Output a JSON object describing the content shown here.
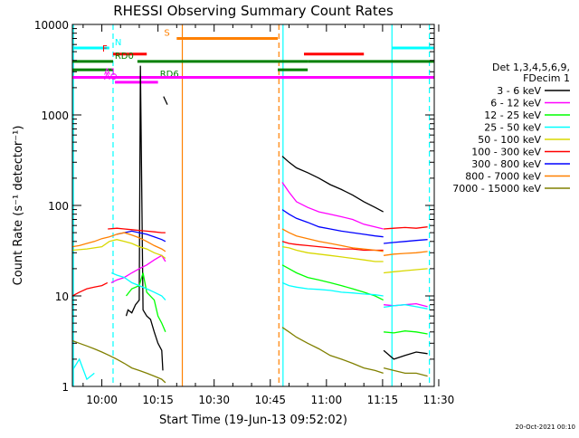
{
  "chart_data": {
    "type": "line",
    "title": "RHESSI Observing Summary Count Rates",
    "xlabel": "Start Time (19-Jun-13 09:52:02)",
    "ylabel": "Count Rate (s⁻¹ detector⁻¹)",
    "x_ticks": [
      "10:00",
      "10:15",
      "10:30",
      "10:45",
      "11:00",
      "11:15",
      "11:30"
    ],
    "x_tick_minutes": [
      0,
      15,
      30,
      45,
      60,
      75,
      90
    ],
    "x_range_minutes": [
      -7.87,
      88.8
    ],
    "y_scale": "log",
    "y_range": [
      1,
      10000
    ],
    "y_ticks": [
      "1",
      "10",
      "100",
      "1000",
      "10000"
    ],
    "y_tick_values": [
      1,
      10,
      100,
      1000,
      10000
    ],
    "grid": false,
    "legend_position": "right",
    "legend_header": [
      "Det 1,3,4,5,6,9,",
      "FDecim 1"
    ],
    "timestamp": "20-Oct-2021 00:10",
    "series": [
      {
        "name": "3 - 6 keV",
        "color": "#000000",
        "segments": [
          {
            "x": [
              6.5,
              7,
              8,
              9,
              10,
              10.3,
              11,
              12,
              13,
              14,
              15,
              16,
              16.3
            ],
            "y": [
              6,
              7,
              6.5,
              8,
              9,
              3500,
              7,
              6,
              5.5,
              4,
              3,
              2.5,
              1.5
            ]
          },
          {
            "x": [
              16.5,
              17.5
            ],
            "y": [
              1600,
              1300
            ]
          },
          {
            "x": [
              48.2,
              50,
              52,
              55,
              58,
              61,
              64,
              67,
              70,
              73,
              75.2
            ],
            "y": [
              350,
              300,
              260,
              230,
              200,
              170,
              150,
              130,
              110,
              95,
              85
            ]
          },
          {
            "x": [
              75.3,
              78,
              81,
              84,
              87
            ],
            "y": [
              2.5,
              2,
              2.2,
              2.4,
              2.3
            ]
          }
        ]
      },
      {
        "name": "6 - 12 keV",
        "color": "#ff00ff",
        "segments": [
          {
            "x": [
              2.5,
              4,
              6,
              8,
              10,
              12,
              14,
              16,
              17
            ],
            "y": [
              14,
              15,
              16,
              18,
              20,
              22,
              25,
              28,
              24
            ]
          },
          {
            "x": [
              48.2,
              50,
              52,
              55,
              58,
              61,
              64,
              67,
              70,
              73,
              75.2
            ],
            "y": [
              180,
              140,
              110,
              95,
              85,
              80,
              75,
              70,
              62,
              58,
              55
            ]
          },
          {
            "x": [
              75.3,
              78,
              81,
              84,
              87
            ],
            "y": [
              8,
              7.8,
              8,
              8.2,
              7.6
            ]
          }
        ]
      },
      {
        "name": "12 - 25 keV",
        "color": "#00ff00",
        "segments": [
          {
            "x": [
              6.5,
              8,
              10,
              11,
              12,
              14,
              15,
              16,
              17
            ],
            "y": [
              10,
              12,
              13,
              18,
              11,
              9,
              6,
              5,
              4
            ]
          },
          {
            "x": [
              48.2,
              50,
              52,
              55,
              58,
              61,
              64,
              67,
              70,
              73,
              75.2
            ],
            "y": [
              22,
              20,
              18,
              16,
              15,
              14,
              13,
              12,
              11,
              10,
              9
            ]
          },
          {
            "x": [
              75.3,
              78,
              81,
              84,
              87
            ],
            "y": [
              4,
              3.9,
              4.1,
              4,
              3.8
            ]
          }
        ]
      },
      {
        "name": "25 - 50 keV",
        "color": "#00ffff",
        "segments": [
          {
            "x": [
              -7.87,
              -6,
              -4,
              -2
            ],
            "y": [
              1.5,
              2,
              1.2,
              1.4
            ]
          },
          {
            "x": [
              2.6,
              4,
              6,
              8,
              10,
              12,
              14,
              16,
              17
            ],
            "y": [
              18,
              17,
              16,
              14,
              13,
              12,
              11,
              10,
              9
            ]
          },
          {
            "x": [
              48.2,
              50,
              52,
              55,
              58,
              61,
              64,
              67,
              70,
              73,
              75.2
            ],
            "y": [
              14,
              13,
              12.5,
              12,
              11.8,
              11.5,
              11,
              10.8,
              10.5,
              10.3,
              10
            ]
          },
          {
            "x": [
              75.3,
              78,
              81,
              84,
              87
            ],
            "y": [
              7.5,
              7.8,
              8,
              7.6,
              7.2
            ]
          }
        ]
      },
      {
        "name": "50 - 100 keV",
        "color": "#d8d800",
        "segments": [
          {
            "x": [
              -7.87,
              -4,
              0,
              2,
              4,
              6,
              8,
              10,
              12,
              14,
              16,
              17
            ],
            "y": [
              32,
              33,
              35,
              40,
              42,
              40,
              38,
              35,
              33,
              30,
              28,
              26
            ]
          },
          {
            "x": [
              48.2,
              50,
              52,
              55,
              58,
              61,
              64,
              67,
              70,
              73,
              75.2
            ],
            "y": [
              35,
              34,
              32,
              30,
              29,
              28,
              27,
              26,
              25,
              24,
              24
            ]
          },
          {
            "x": [
              75.3,
              78,
              81,
              84,
              87
            ],
            "y": [
              18,
              18.5,
              19,
              19.5,
              20
            ]
          }
        ]
      },
      {
        "name": "100 - 300 keV",
        "color": "#ff0000",
        "segments": [
          {
            "x": [
              -7.87,
              -6,
              -4,
              -2,
              0,
              1.5
            ],
            "y": [
              10,
              11,
              12,
              12.5,
              13,
              14
            ]
          },
          {
            "x": [
              1.6,
              4,
              6,
              8,
              10,
              12,
              14,
              16,
              17
            ],
            "y": [
              55,
              56,
              55,
              54,
              53,
              52,
              51,
              50,
              50
            ]
          },
          {
            "x": [
              48.2,
              50,
              52,
              55,
              58,
              61,
              64,
              67,
              70,
              73,
              75.2
            ],
            "y": [
              40,
              38,
              37,
              36,
              35,
              34,
              33,
              33,
              32,
              32,
              32
            ]
          },
          {
            "x": [
              75.3,
              78,
              81,
              84,
              87
            ],
            "y": [
              55,
              56,
              57,
              56,
              58
            ]
          }
        ]
      },
      {
        "name": "300 - 800 keV",
        "color": "#0000ff",
        "segments": [
          {
            "x": [
              4,
              6,
              8,
              10,
              12,
              14,
              16,
              17
            ],
            "y": [
              48,
              50,
              52,
              50,
              48,
              45,
              42,
              40
            ]
          },
          {
            "x": [
              48.2,
              50,
              52,
              55,
              58,
              61,
              64,
              67,
              70,
              73,
              75.2
            ],
            "y": [
              90,
              80,
              72,
              65,
              58,
              55,
              52,
              50,
              48,
              46,
              45
            ]
          },
          {
            "x": [
              75.3,
              78,
              81,
              84,
              87
            ],
            "y": [
              38,
              39,
              40,
              41,
              42
            ]
          }
        ]
      },
      {
        "name": "800 - 7000 keV",
        "color": "#ff8000",
        "segments": [
          {
            "x": [
              -7.87,
              -6,
              -4,
              -2,
              0,
              2,
              4,
              6,
              8,
              10,
              12,
              14,
              16,
              17
            ],
            "y": [
              35,
              36,
              38,
              40,
              43,
              45,
              48,
              50,
              47,
              44,
              40,
              36,
              33,
              31
            ]
          },
          {
            "x": [
              48.2,
              50,
              52,
              55,
              58,
              61,
              64,
              67,
              70,
              73,
              75.2
            ],
            "y": [
              55,
              50,
              46,
              43,
              40,
              38,
              36,
              34,
              33,
              32,
              31
            ]
          },
          {
            "x": [
              75.3,
              78,
              81,
              84,
              87
            ],
            "y": [
              28,
              29,
              29.5,
              30,
              31
            ]
          }
        ]
      },
      {
        "name": "7000 - 15000 keV",
        "color": "#808000",
        "segments": [
          {
            "x": [
              -7.87,
              -6,
              -4,
              -2,
              0,
              2,
              4,
              6,
              8,
              10,
              12,
              14,
              16,
              17
            ],
            "y": [
              3.2,
              3,
              2.8,
              2.6,
              2.4,
              2.2,
              2,
              1.8,
              1.6,
              1.5,
              1.4,
              1.3,
              1.2,
              1.1
            ]
          },
          {
            "x": [
              48.2,
              50,
              52,
              55,
              58,
              61,
              64,
              67,
              70,
              73,
              75.2
            ],
            "y": [
              4.5,
              4,
              3.5,
              3,
              2.6,
              2.2,
              2,
              1.8,
              1.6,
              1.5,
              1.4
            ]
          },
          {
            "x": [
              75.3,
              78,
              81,
              84,
              87
            ],
            "y": [
              1.6,
              1.5,
              1.4,
              1.4,
              1.3
            ]
          }
        ]
      }
    ],
    "flags": [
      {
        "label": "N",
        "color": "#00ffff",
        "segments": [
          [
            -7.87,
            2
          ],
          [
            77.5,
            88.8
          ]
        ],
        "y": 5500
      },
      {
        "label": "F",
        "color": "#ff0000",
        "segments": [
          [
            3,
            12
          ],
          [
            54,
            70
          ]
        ],
        "y": 4700
      },
      {
        "label": "S",
        "color": "#ff8000",
        "segments": [
          [
            20,
            47
          ]
        ],
        "y": 7000
      },
      {
        "label": "RD0",
        "color": "#008000",
        "segments": [
          [
            -7.87,
            3
          ],
          [
            9.5,
            47
          ],
          [
            47,
            55
          ],
          [
            55,
            88.8
          ]
        ],
        "y": 3900
      },
      {
        "label": "RD6",
        "color": "#008000",
        "segments": [
          [
            -7.87,
            3
          ],
          [
            47,
            55
          ]
        ],
        "y": 3150
      },
      {
        "label": "AO",
        "color": "#ff00ff",
        "segments": [
          [
            3.5,
            15
          ]
        ],
        "y": 2300
      },
      {
        "label": "A1",
        "color": "#ff00ff",
        "segments": [
          [
            -7.87,
            88.8
          ]
        ],
        "y": 2600
      }
    ],
    "markers": [
      {
        "x": -7.6,
        "color": "#00ffff",
        "style": "solid"
      },
      {
        "x": 3,
        "color": "#00ffff",
        "style": "dashed"
      },
      {
        "x": 21.5,
        "color": "#ff8000",
        "style": "solid"
      },
      {
        "x": 47.3,
        "color": "#ff8000",
        "style": "dashed"
      },
      {
        "x": 48.4,
        "color": "#00ffff",
        "style": "solid"
      },
      {
        "x": 77.5,
        "color": "#00ffff",
        "style": "solid"
      },
      {
        "x": 87.5,
        "color": "#00ffff",
        "style": "dashed"
      }
    ]
  }
}
